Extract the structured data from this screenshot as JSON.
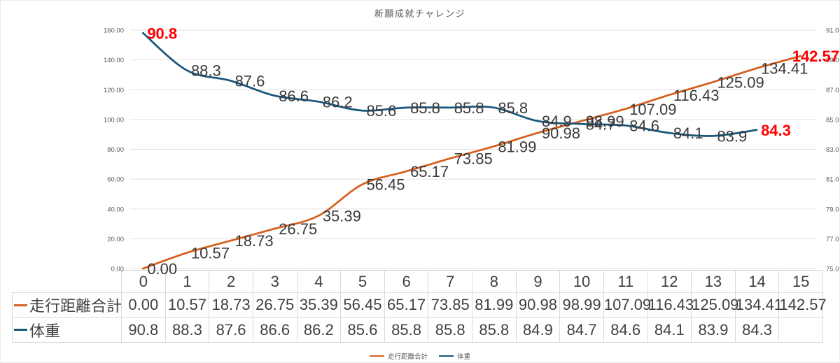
{
  "title": "新願成就チャレンジ",
  "chart_data": {
    "type": "line",
    "title": "新願成就チャレンジ",
    "categories": [
      "0",
      "1",
      "2",
      "3",
      "4",
      "5",
      "6",
      "7",
      "8",
      "9",
      "10",
      "11",
      "12",
      "13",
      "14",
      "15"
    ],
    "series": [
      {
        "name": "走行距離合計",
        "color": "#d75f1e",
        "axis": "left",
        "decimals": 2,
        "values": [
          0.0,
          10.57,
          18.73,
          26.75,
          35.39,
          56.45,
          65.17,
          73.85,
          81.99,
          90.98,
          98.99,
          107.09,
          116.43,
          125.09,
          134.41,
          142.57
        ],
        "red_label_indices": [
          15
        ]
      },
      {
        "name": "体重",
        "color": "#19567c",
        "axis": "right",
        "decimals": 1,
        "values": [
          90.8,
          88.3,
          87.6,
          86.6,
          86.2,
          85.6,
          85.8,
          85.8,
          85.8,
          84.9,
          84.7,
          84.6,
          84.1,
          83.9,
          84.3,
          null
        ],
        "red_label_indices": [
          0,
          14
        ]
      }
    ],
    "left_axis": {
      "min": 0,
      "max": 160,
      "step": 20,
      "tick_labels": [
        "0.00",
        "20.00",
        "40.00",
        "60.00",
        "80.00",
        "100.00",
        "120.00",
        "140.00",
        "160.00"
      ]
    },
    "right_axis": {
      "min": 75,
      "max": 91,
      "step": 2,
      "tick_labels": [
        "75.0",
        "77.0",
        "79.0",
        "81.0",
        "83.0",
        "85.0",
        "87.0",
        "89.0",
        "91.0"
      ]
    },
    "grid": true,
    "legend_position": "bottom",
    "highlight_color": "#ff0000",
    "label_color": "#3a3a3a",
    "axis_text_color": "#595959",
    "gridline_color": "#e2e2e2"
  }
}
